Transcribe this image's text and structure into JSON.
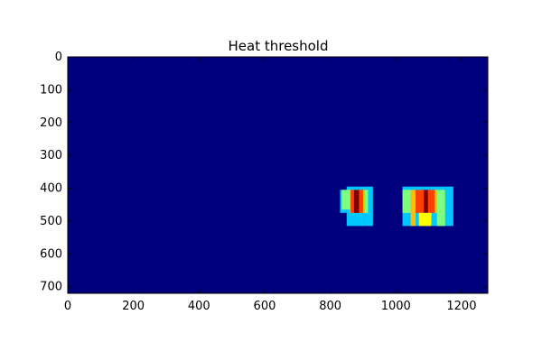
{
  "chart_data": {
    "type": "heatmap",
    "title": "Heat threshold",
    "xlabel": "",
    "ylabel": "",
    "image_size": [
      1280,
      720
    ],
    "xlim": [
      0,
      1280
    ],
    "ylim": [
      720,
      0
    ],
    "y_axis_inverted": true,
    "grid": false,
    "colormap": "jet",
    "background_color": "#00007f",
    "x_ticks": [
      0,
      200,
      400,
      600,
      800,
      1000,
      1200
    ],
    "y_ticks": [
      0,
      100,
      200,
      300,
      400,
      500,
      600,
      700
    ],
    "regions": [
      {
        "x0": 830,
        "x1": 850,
        "y0": 405,
        "y1": 475,
        "color": "#00c8ff"
      },
      {
        "x0": 850,
        "x1": 930,
        "y0": 395,
        "y1": 515,
        "color": "#00c8ff"
      },
      {
        "x0": 835,
        "x1": 860,
        "y0": 405,
        "y1": 465,
        "color": "#7fff7f"
      },
      {
        "x0": 860,
        "x1": 905,
        "y0": 405,
        "y1": 475,
        "color": "#ffbf00"
      },
      {
        "x0": 905,
        "x1": 915,
        "y0": 405,
        "y1": 475,
        "color": "#7fff7f"
      },
      {
        "x0": 862,
        "x1": 872,
        "y0": 405,
        "y1": 475,
        "color": "#ff4000"
      },
      {
        "x0": 872,
        "x1": 888,
        "y0": 405,
        "y1": 475,
        "color": "#7f0000"
      },
      {
        "x0": 888,
        "x1": 900,
        "y0": 405,
        "y1": 475,
        "color": "#ff4000"
      },
      {
        "x0": 1020,
        "x1": 1045,
        "y0": 395,
        "y1": 515,
        "color": "#00c8ff"
      },
      {
        "x0": 1045,
        "x1": 1150,
        "y0": 395,
        "y1": 515,
        "color": "#00c8ff"
      },
      {
        "x0": 1150,
        "x1": 1175,
        "y0": 395,
        "y1": 515,
        "color": "#00c8ff"
      },
      {
        "x0": 1020,
        "x1": 1045,
        "y0": 405,
        "y1": 475,
        "color": "#7fff7f"
      },
      {
        "x0": 1045,
        "x1": 1060,
        "y0": 405,
        "y1": 515,
        "color": "#ffbf00"
      },
      {
        "x0": 1060,
        "x1": 1085,
        "y0": 405,
        "y1": 475,
        "color": "#ff4000"
      },
      {
        "x0": 1085,
        "x1": 1098,
        "y0": 405,
        "y1": 475,
        "color": "#7f0000"
      },
      {
        "x0": 1098,
        "x1": 1118,
        "y0": 405,
        "y1": 475,
        "color": "#ff4000"
      },
      {
        "x0": 1070,
        "x1": 1108,
        "y0": 475,
        "y1": 515,
        "color": "#ffff00"
      },
      {
        "x0": 1118,
        "x1": 1125,
        "y0": 405,
        "y1": 475,
        "color": "#ffbf00"
      },
      {
        "x0": 1125,
        "x1": 1150,
        "y0": 405,
        "y1": 515,
        "color": "#7fff7f"
      }
    ]
  }
}
